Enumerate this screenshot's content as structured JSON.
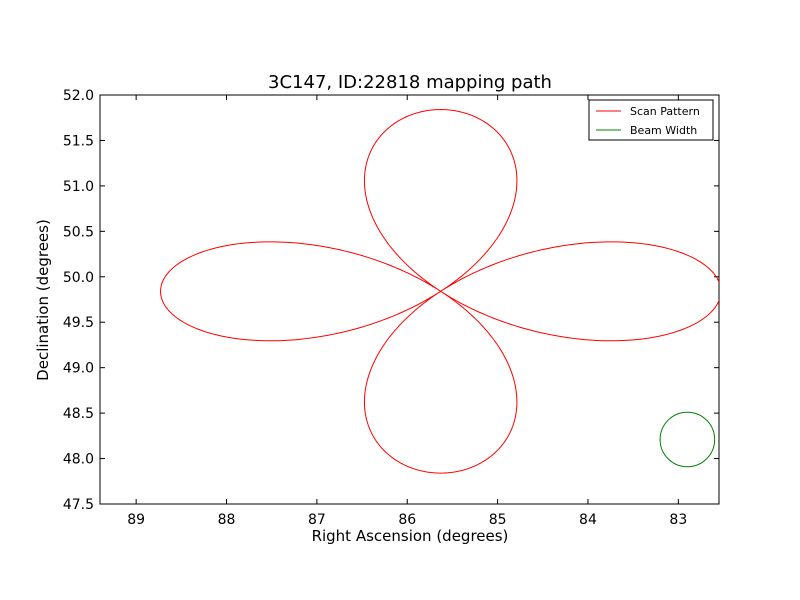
{
  "chart_data": {
    "type": "line",
    "title": "3C147, ID:22818 mapping path",
    "xlabel": "Right Ascension (degrees)",
    "ylabel": "Declination (degrees)",
    "xlim": [
      89.4,
      82.55
    ],
    "ylim": [
      47.5,
      52.0
    ],
    "x_inverted": true,
    "xticks": [
      89,
      88,
      87,
      86,
      85,
      84,
      83
    ],
    "xtick_labels": [
      "89",
      "88",
      "87",
      "86",
      "85",
      "84",
      "83"
    ],
    "yticks": [
      47.5,
      48.0,
      48.5,
      49.0,
      49.5,
      50.0,
      50.5,
      51.0,
      51.5,
      52.0
    ],
    "ytick_labels": [
      "47.5",
      "48.0",
      "48.5",
      "49.0",
      "49.5",
      "50.0",
      "50.5",
      "51.0",
      "51.5",
      "52.0"
    ],
    "grid": false,
    "legend_position": "top-right",
    "series": [
      {
        "name": "Scan Pattern",
        "color": "#ff0000",
        "shape": "four-leaf rose",
        "center": [
          85.63,
          49.84
        ],
        "lobe_extent_ra": 3.1,
        "lobe_extent_dec": 2.0
      },
      {
        "name": "Beam Width",
        "color": "#008000",
        "shape": "circle",
        "center": [
          82.9,
          48.21
        ],
        "radius_dec": 0.3
      }
    ]
  }
}
